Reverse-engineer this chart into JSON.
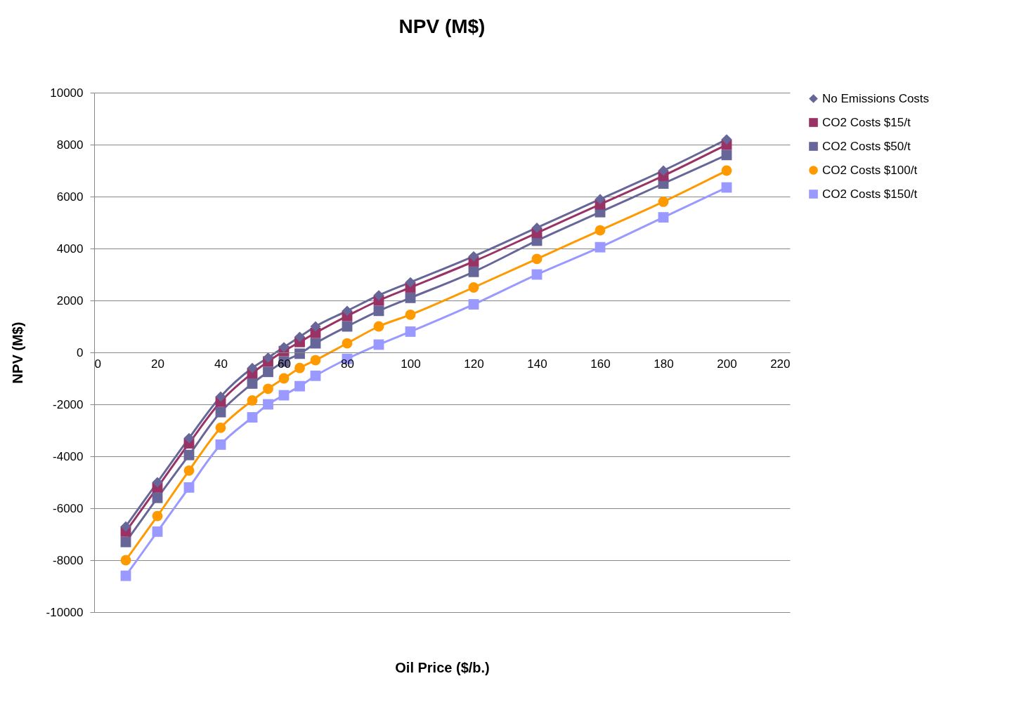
{
  "chart_data": {
    "type": "line",
    "title": "NPV (M$)",
    "xlabel": "Oil Price ($/b.)",
    "ylabel": "NPV (M$)",
    "x": [
      10,
      20,
      30,
      40,
      50,
      55,
      60,
      65,
      70,
      80,
      90,
      100,
      120,
      140,
      160,
      180,
      200
    ],
    "xlim": [
      0,
      220
    ],
    "xticks": [
      0,
      20,
      40,
      60,
      80,
      100,
      120,
      140,
      160,
      180,
      200,
      220
    ],
    "ylim": [
      -10000,
      10000
    ],
    "yticks": [
      -10000,
      -8000,
      -6000,
      -4000,
      -2000,
      0,
      2000,
      4000,
      6000,
      8000,
      10000
    ],
    "grid": "y",
    "legend": "right",
    "series": [
      {
        "name": "No Emissions Costs",
        "color": "#666699",
        "marker": "diamond",
        "values": [
          -6700,
          -5000,
          -3300,
          -1700,
          -600,
          -200,
          200,
          600,
          1000,
          1600,
          2200,
          2700,
          3700,
          4800,
          5900,
          7000,
          8200
        ]
      },
      {
        "name": "CO2 Costs $15/t",
        "color": "#993366",
        "marker": "square",
        "values": [
          -6900,
          -5200,
          -3500,
          -1900,
          -800,
          -350,
          50,
          400,
          750,
          1400,
          2000,
          2500,
          3500,
          4600,
          5700,
          6800,
          8000
        ]
      },
      {
        "name": "CO2 Costs $50/t",
        "color": "#666699",
        "marker": "square",
        "values": [
          -7300,
          -5600,
          -3950,
          -2300,
          -1200,
          -750,
          -350,
          -50,
          350,
          1000,
          1600,
          2100,
          3100,
          4300,
          5400,
          6500,
          7600
        ]
      },
      {
        "name": "CO2 Costs $100/t",
        "color": "#ff9900",
        "marker": "circle",
        "values": [
          -8000,
          -6300,
          -4550,
          -2900,
          -1850,
          -1400,
          -1000,
          -600,
          -300,
          350,
          1000,
          1450,
          2500,
          3600,
          4700,
          5800,
          7000
        ]
      },
      {
        "name": "CO2 Costs $150/t",
        "color": "#9999ff",
        "marker": "square",
        "values": [
          -8600,
          -6900,
          -5200,
          -3550,
          -2500,
          -2000,
          -1650,
          -1300,
          -900,
          -250,
          300,
          800,
          1850,
          3000,
          4050,
          5200,
          6350
        ]
      }
    ]
  }
}
